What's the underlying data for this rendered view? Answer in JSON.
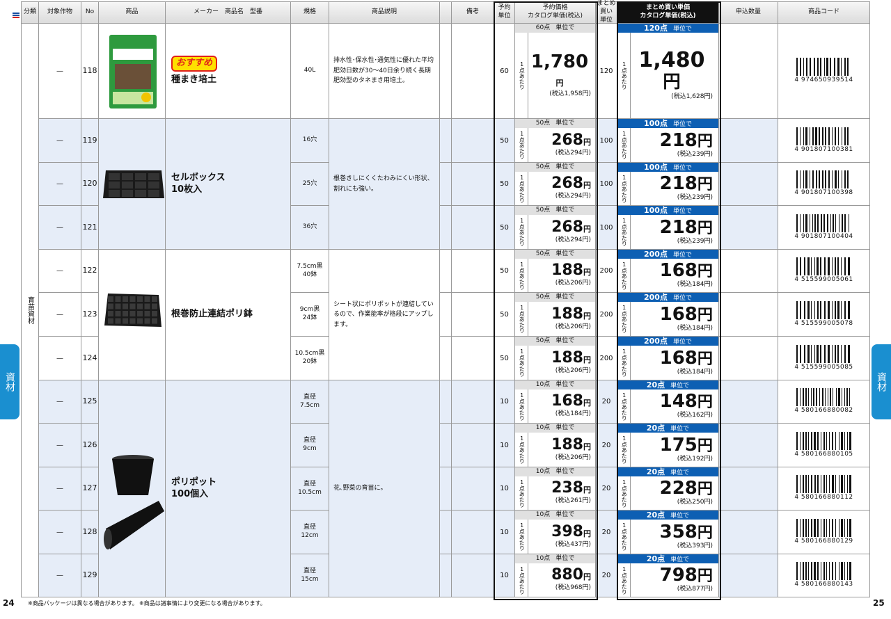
{
  "header": {
    "category": "分類",
    "crop": "対象作物",
    "no": "No",
    "product": "商品",
    "maker": "メーカー　商品名　型番",
    "spec": "規格",
    "description": "商品説明",
    "note": "備考",
    "reserve_unit": "予約\n単位",
    "reserve_price": "予約価格\nカタログ単価(税込)",
    "bulk_unit": "まとめ\n買い\n単位",
    "bulk_price": "まとめ買い単価\nカタログ単価(税込)",
    "quantity": "申込数量",
    "code": "商品コード"
  },
  "category": "育苗資材",
  "labels": {
    "lot_suffix": "単位で",
    "per_unit": "1点あたり",
    "yen": "円"
  },
  "groups": [
    {
      "badge": "おすすめ",
      "name": "種まき培土",
      "description": "排水性･保水性･通気性に優れた平均肥効日数が30～40日余り続く長期肥効型のタネまき用培土。",
      "items": [
        {
          "crop": "—",
          "no": 118,
          "spec": "40L",
          "reserve_unit": 60,
          "reserve_lot": "60点",
          "reserve_price": "1,780",
          "reserve_tax": "(税込1,958円)",
          "bulk_unit": 120,
          "bulk_lot": "120点",
          "bulk_price": "1,480",
          "bulk_tax": "(税込1,628円)",
          "code": "4 974650939514"
        }
      ]
    },
    {
      "name": "セルボックス\n10枚入",
      "description": "根巻きしにくくたわみにくい形状、割れにも強い。",
      "items": [
        {
          "crop": "—",
          "no": 119,
          "spec": "16穴",
          "reserve_unit": 50,
          "reserve_lot": "50点",
          "reserve_price": "268",
          "reserve_tax": "(税込294円)",
          "bulk_unit": 100,
          "bulk_lot": "100点",
          "bulk_price": "218",
          "bulk_tax": "(税込239円)",
          "code": "4 901807100381"
        },
        {
          "crop": "—",
          "no": 120,
          "spec": "25穴",
          "reserve_unit": 50,
          "reserve_lot": "50点",
          "reserve_price": "268",
          "reserve_tax": "(税込294円)",
          "bulk_unit": 100,
          "bulk_lot": "100点",
          "bulk_price": "218",
          "bulk_tax": "(税込239円)",
          "code": "4 901807100398"
        },
        {
          "crop": "—",
          "no": 121,
          "spec": "36穴",
          "reserve_unit": 50,
          "reserve_lot": "50点",
          "reserve_price": "268",
          "reserve_tax": "(税込294円)",
          "bulk_unit": 100,
          "bulk_lot": "100点",
          "bulk_price": "218",
          "bulk_tax": "(税込239円)",
          "code": "4 901807100404"
        }
      ]
    },
    {
      "name": "根巻防止連結ポリ鉢",
      "description": "シート状にポリポットが連結しているので、作業能率が格段にアップします。",
      "items": [
        {
          "crop": "—",
          "no": 122,
          "spec": "7.5cm黒\n40鉢",
          "reserve_unit": 50,
          "reserve_lot": "50点",
          "reserve_price": "188",
          "reserve_tax": "(税込206円)",
          "bulk_unit": 200,
          "bulk_lot": "200点",
          "bulk_price": "168",
          "bulk_tax": "(税込184円)",
          "code": "4 515599005061"
        },
        {
          "crop": "—",
          "no": 123,
          "spec": "9cm黒\n24鉢",
          "reserve_unit": 50,
          "reserve_lot": "50点",
          "reserve_price": "188",
          "reserve_tax": "(税込206円)",
          "bulk_unit": 200,
          "bulk_lot": "200点",
          "bulk_price": "168",
          "bulk_tax": "(税込184円)",
          "code": "4 515599005078"
        },
        {
          "crop": "—",
          "no": 124,
          "spec": "10.5cm黒\n20鉢",
          "reserve_unit": 50,
          "reserve_lot": "50点",
          "reserve_price": "188",
          "reserve_tax": "(税込206円)",
          "bulk_unit": 200,
          "bulk_lot": "200点",
          "bulk_price": "168",
          "bulk_tax": "(税込184円)",
          "code": "4 515599005085"
        }
      ]
    },
    {
      "name": "ポリポット\n100個入",
      "description": "花､野菜の育苗に。",
      "items": [
        {
          "crop": "—",
          "no": 125,
          "spec": "直径\n7.5cm",
          "reserve_unit": 10,
          "reserve_lot": "10点",
          "reserve_price": "168",
          "reserve_tax": "(税込184円)",
          "bulk_unit": 20,
          "bulk_lot": "20点",
          "bulk_price": "148",
          "bulk_tax": "(税込162円)",
          "code": "4 580166880082"
        },
        {
          "crop": "—",
          "no": 126,
          "spec": "直径\n9cm",
          "reserve_unit": 10,
          "reserve_lot": "10点",
          "reserve_price": "188",
          "reserve_tax": "(税込206円)",
          "bulk_unit": 20,
          "bulk_lot": "20点",
          "bulk_price": "175",
          "bulk_tax": "(税込192円)",
          "code": "4 580166880105"
        },
        {
          "crop": "—",
          "no": 127,
          "spec": "直径\n10.5cm",
          "reserve_unit": 10,
          "reserve_lot": "10点",
          "reserve_price": "238",
          "reserve_tax": "(税込261円)",
          "bulk_unit": 20,
          "bulk_lot": "20点",
          "bulk_price": "228",
          "bulk_tax": "(税込250円)",
          "code": "4 580166880112"
        },
        {
          "crop": "—",
          "no": 128,
          "spec": "直径\n12cm",
          "reserve_unit": 10,
          "reserve_lot": "10点",
          "reserve_price": "398",
          "reserve_tax": "(税込437円)",
          "bulk_unit": 20,
          "bulk_lot": "20点",
          "bulk_price": "358",
          "bulk_tax": "(税込393円)",
          "code": "4 580166880129"
        },
        {
          "crop": "—",
          "no": 129,
          "spec": "直径\n15cm",
          "reserve_unit": 10,
          "reserve_lot": "10点",
          "reserve_price": "880",
          "reserve_tax": "(税込968円)",
          "bulk_unit": 20,
          "bulk_lot": "20点",
          "bulk_price": "798",
          "bulk_tax": "(税込877円)",
          "code": "4 580166880143"
        }
      ]
    }
  ],
  "footer": [
    "※商品パッケージは異なる場合があります。",
    "※商品は諸事情により変更になる場合があります。"
  ],
  "page_numbers": [
    "24",
    "25"
  ],
  "side_tab": "資材"
}
